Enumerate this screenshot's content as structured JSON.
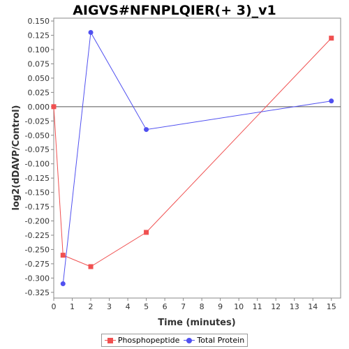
{
  "chart_data": {
    "type": "line",
    "title": "AIGVS#NFNPLQIER(+ 3)_v1",
    "xlabel": "Time (minutes)",
    "ylabel": "log2(dDAVP/Control)",
    "xlim": [
      0,
      15.5
    ],
    "ylim": [
      -0.335,
      0.155
    ],
    "x_ticks": [
      0,
      1,
      2,
      3,
      4,
      5,
      6,
      7,
      8,
      9,
      10,
      11,
      12,
      13,
      14,
      15
    ],
    "y_ticks": [
      "0.150",
      "0.125",
      "0.100",
      "0.075",
      "0.050",
      "0.025",
      "0.000",
      "-0.025",
      "-0.050",
      "-0.075",
      "-0.100",
      "-0.125",
      "-0.150",
      "-0.175",
      "-0.200",
      "-0.225",
      "-0.250",
      "-0.275",
      "-0.300",
      "-0.325"
    ],
    "grid": false,
    "zero_line": true,
    "legend_position": "bottom",
    "series": [
      {
        "name": "Phosphopeptide",
        "color": "#f05050",
        "marker": "square",
        "x": [
          0,
          0.5,
          2,
          5,
          15
        ],
        "y": [
          0.0,
          -0.26,
          -0.28,
          -0.22,
          0.12
        ]
      },
      {
        "name": "Total Protein",
        "color": "#5050f0",
        "marker": "circle",
        "x": [
          0.5,
          2,
          5,
          15
        ],
        "y": [
          -0.31,
          0.13,
          -0.04,
          0.01
        ]
      }
    ]
  }
}
